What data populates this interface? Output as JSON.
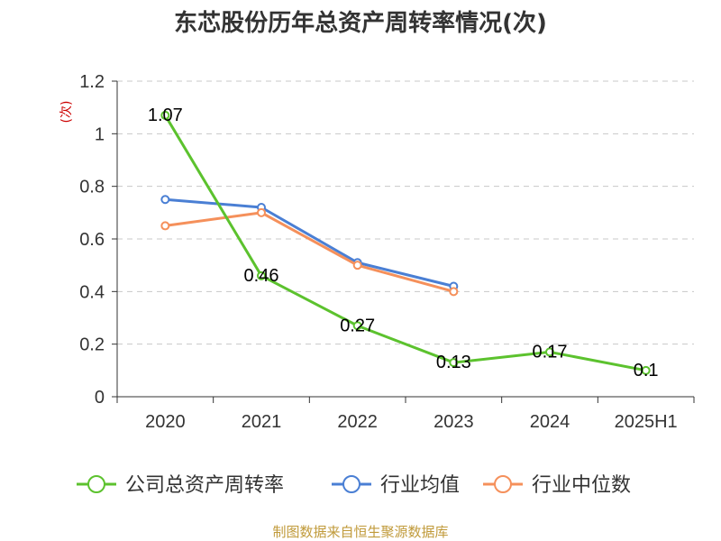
{
  "title": "东芯股份历年总资产周转率情况(次)",
  "source": "制图数据来自恒生聚源数据库",
  "chart_data": {
    "type": "line",
    "ylabel": "(次)",
    "ylim": [
      0,
      1.2
    ],
    "yticks": [
      "0",
      "0.2",
      "0.4",
      "0.6",
      "0.8",
      "1",
      "1.2"
    ],
    "categories": [
      "2020",
      "2021",
      "2022",
      "2023",
      "2024",
      "2025H1"
    ],
    "grid": true,
    "legend_position": "bottom",
    "series": [
      {
        "name": "公司总资产周转率",
        "color": "#5cc22e",
        "values": [
          1.07,
          0.46,
          0.27,
          0.13,
          0.17,
          0.1
        ],
        "labels": [
          "1.07",
          "0.46",
          "0.27",
          "0.13",
          "0.17",
          "0.1"
        ]
      },
      {
        "name": "行业均值",
        "color": "#4a7fd4",
        "values": [
          0.75,
          0.72,
          0.51,
          0.42,
          null,
          null
        ]
      },
      {
        "name": "行业中位数",
        "color": "#f5905b",
        "values": [
          0.65,
          0.7,
          0.5,
          0.4,
          null,
          null
        ]
      }
    ]
  }
}
